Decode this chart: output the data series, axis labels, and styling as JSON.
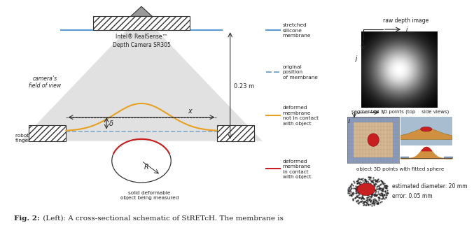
{
  "fig_width": 6.4,
  "fig_height": 3.29,
  "bg_color": "#ffffff",
  "caption_bold": "Fig. 2:",
  "caption_rest": " (Left): A cross-sectional schematic of StRETcH. The membrane is",
  "legend_items": [
    {
      "label": "stretched\nsilicone\nmembrane",
      "color": "#5b9bd5",
      "style": "solid"
    },
    {
      "label": "original\nposition\nof membrane",
      "color": "#7faacc",
      "style": "dashed"
    },
    {
      "label": "deformed\nmembrane\nnot in contact\nwith object",
      "color": "#e8a020",
      "style": "solid"
    },
    {
      "label": "deformed\nmembrane\nin contact\nwith object",
      "color": "#cc2020",
      "style": "solid"
    }
  ],
  "camera_label1": "Intel® RealSense™",
  "camera_label2": "Depth Camera SR305",
  "distance_label": "0.23 m",
  "x_label": "x",
  "delta_label": "δ",
  "R_label": "R",
  "fov_label": "camera’s\nfield of view",
  "robot_label": "robot gripper\nfinger mount",
  "obj_label": "solid deformable\nobject being measured",
  "raw_depth_title": "raw depth image",
  "seg_title": "segmented 3D points (top    side views)",
  "sphere_title": "object 3D points with fitted sphere",
  "diam_label": "estimated diameter: 20 mm",
  "err_label": "error: 0.05 mm",
  "i_label": "i",
  "j_label": "j"
}
